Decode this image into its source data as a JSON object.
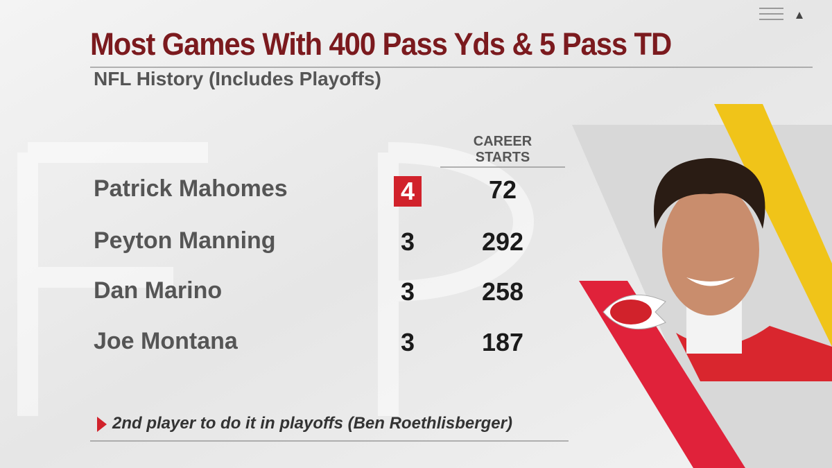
{
  "header": {
    "title": "Most Games With 400 Pass Yds & 5 Pass TD",
    "subtitle": "NFL History (Includes Playoffs)"
  },
  "table": {
    "columns": [
      "CAREER STARTS"
    ],
    "rows": [
      {
        "player": "Patrick Mahomes",
        "games": 4,
        "career_starts": 72
      },
      {
        "player": "Peyton Manning",
        "games": 3,
        "career_starts": 292
      },
      {
        "player": "Dan Marino",
        "games": 3,
        "career_starts": 258
      },
      {
        "player": "Joe Montana",
        "games": 3,
        "career_starts": 187
      }
    ]
  },
  "footnote": "2nd player to do it in playoffs (Ben Roethlisberger)"
}
